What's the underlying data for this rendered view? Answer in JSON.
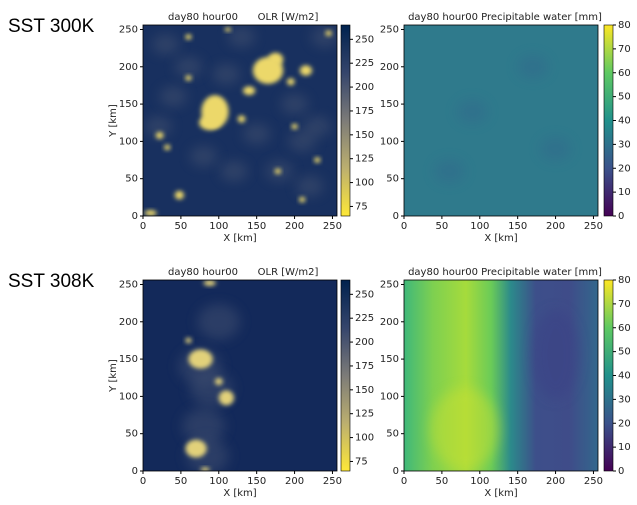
{
  "rows": [
    {
      "label": "SST 300K",
      "panels": [
        {
          "type": "heatmap",
          "title": "day80 hour00",
          "title2": "OLR [W/m2]",
          "xlabel": "X [km]",
          "ylabel": "Y [km]",
          "xlim": [
            0,
            256
          ],
          "ylim": [
            0,
            256
          ],
          "xticks": [
            0,
            50,
            100,
            150,
            200,
            250
          ],
          "yticks": [
            0,
            50,
            100,
            150,
            200,
            250
          ],
          "colormap": "cividis_r",
          "clim": [
            65,
            265
          ],
          "cticks": [
            75,
            100,
            125,
            150,
            175,
            200,
            225,
            250
          ]
        },
        {
          "type": "heatmap",
          "title": "day80 hour00 Precipitable water [mm]",
          "xlabel": "X [km]",
          "xlim": [
            0,
            256
          ],
          "ylim": [
            0,
            256
          ],
          "xticks": [
            0,
            50,
            100,
            150,
            200,
            250
          ],
          "yticks": [
            0,
            50,
            100,
            150,
            200,
            250
          ],
          "colormap": "viridis",
          "clim": [
            0,
            80
          ],
          "cticks": [
            0,
            10,
            20,
            30,
            40,
            50,
            60,
            70,
            80
          ]
        }
      ]
    },
    {
      "label": "SST 308K",
      "panels": [
        {
          "type": "heatmap",
          "title": "day80 hour00",
          "title2": "OLR [W/m2]",
          "xlabel": "X [km]",
          "ylabel": "Y [km]",
          "xlim": [
            0,
            256
          ],
          "ylim": [
            0,
            256
          ],
          "xticks": [
            0,
            50,
            100,
            150,
            200,
            250
          ],
          "yticks": [
            0,
            50,
            100,
            150,
            200,
            250
          ],
          "colormap": "cividis_r",
          "clim": [
            65,
            265
          ],
          "cticks": [
            75,
            100,
            125,
            150,
            175,
            200,
            225,
            250
          ]
        },
        {
          "type": "heatmap",
          "title": "day80 hour00 Precipitable water [mm]",
          "xlabel": "X [km]",
          "xlim": [
            0,
            256
          ],
          "ylim": [
            0,
            256
          ],
          "xticks": [
            0,
            50,
            100,
            150,
            200,
            250
          ],
          "yticks": [
            0,
            50,
            100,
            150,
            200,
            250
          ],
          "colormap": "viridis",
          "clim": [
            0,
            80
          ],
          "cticks": [
            0,
            10,
            20,
            30,
            40,
            50,
            60,
            70,
            80
          ]
        }
      ]
    }
  ]
}
